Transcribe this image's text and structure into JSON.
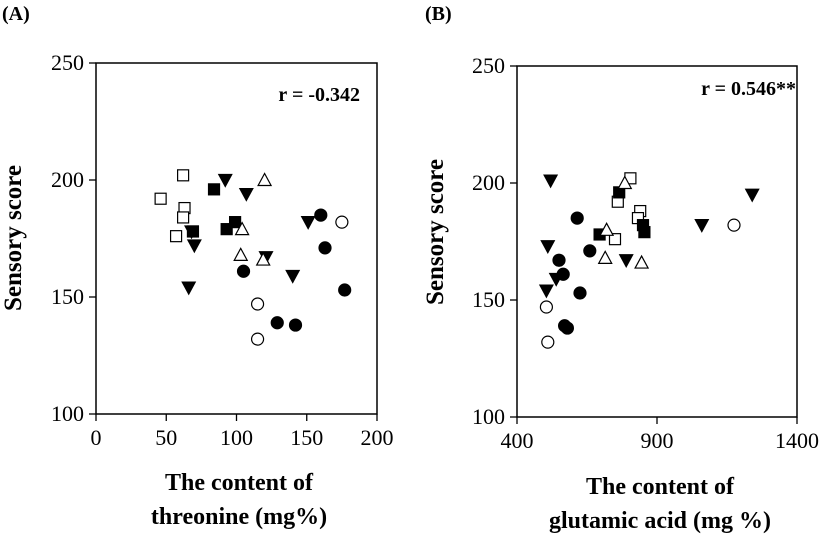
{
  "chart_data": [
    {
      "type": "scatter",
      "panel_label": "(A)",
      "annotation": "r = -0.342",
      "ylabel": "Sensory score",
      "xlabel_lines": [
        "The content of",
        "threonine (mg%)"
      ],
      "xlim": [
        0,
        200
      ],
      "ylim": [
        100,
        250
      ],
      "xticks": [
        0,
        50,
        100,
        150,
        200
      ],
      "yticks": [
        100,
        150,
        200,
        250
      ],
      "grid": false,
      "series": [
        {
          "marker": "open-square",
          "points": [
            [
              46,
              192
            ],
            [
              62,
              202
            ],
            [
              63,
              188
            ],
            [
              62,
              184
            ],
            [
              57,
              176
            ]
          ]
        },
        {
          "marker": "filled-square",
          "points": [
            [
              84,
              196
            ],
            [
              99,
              182
            ],
            [
              93,
              179
            ],
            [
              69,
              178
            ]
          ]
        },
        {
          "marker": "filled-triangle-down",
          "points": [
            [
              66,
              154
            ],
            [
              70,
              172
            ],
            [
              68,
              178
            ],
            [
              92,
              200
            ],
            [
              107,
              194
            ],
            [
              121,
              167
            ],
            [
              140,
              159
            ],
            [
              151,
              182
            ]
          ]
        },
        {
          "marker": "open-triangle",
          "points": [
            [
              120,
              200
            ],
            [
              104,
              179
            ],
            [
              103,
              168
            ],
            [
              119,
              166
            ]
          ]
        },
        {
          "marker": "filled-circle",
          "points": [
            [
              160,
              185
            ],
            [
              163,
              171
            ],
            [
              105,
              161
            ],
            [
              177,
              153
            ],
            [
              129,
              139
            ],
            [
              142,
              138
            ]
          ]
        },
        {
          "marker": "open-circle",
          "points": [
            [
              175,
              182
            ],
            [
              115,
              147
            ],
            [
              115,
              132
            ]
          ]
        }
      ]
    },
    {
      "type": "scatter",
      "panel_label": "(B)",
      "annotation": "r = 0.546**",
      "ylabel": "Sensory score",
      "xlabel_lines": [
        "The content of",
        "glutamic acid (mg %)"
      ],
      "xlim": [
        400,
        1400
      ],
      "ylim": [
        100,
        250
      ],
      "xticks": [
        400,
        900,
        1400
      ],
      "yticks": [
        100,
        150,
        200,
        250
      ],
      "grid": false,
      "series": [
        {
          "marker": "open-square",
          "points": [
            [
              805,
              202
            ],
            [
              840,
              188
            ],
            [
              832,
              185
            ],
            [
              760,
              192
            ],
            [
              750,
              176
            ]
          ]
        },
        {
          "marker": "filled-square",
          "points": [
            [
              765,
              196
            ],
            [
              850,
              182
            ],
            [
              855,
              179
            ],
            [
              695,
              178
            ]
          ]
        },
        {
          "marker": "filled-triangle-down",
          "points": [
            [
              520,
              201
            ],
            [
              510,
              173
            ],
            [
              540,
              159
            ],
            [
              505,
              154
            ],
            [
              790,
              167
            ],
            [
              1240,
              195
            ],
            [
              1060,
              182
            ]
          ]
        },
        {
          "marker": "open-triangle",
          "points": [
            [
              785,
              200
            ],
            [
              720,
              180
            ],
            [
              715,
              168
            ],
            [
              845,
              166
            ]
          ]
        },
        {
          "marker": "filled-circle",
          "points": [
            [
              615,
              185
            ],
            [
              660,
              171
            ],
            [
              550,
              167
            ],
            [
              565,
              161
            ],
            [
              625,
              153
            ],
            [
              570,
              139
            ],
            [
              580,
              138
            ]
          ]
        },
        {
          "marker": "open-circle",
          "points": [
            [
              1175,
              182
            ],
            [
              505,
              147
            ],
            [
              510,
              132
            ]
          ]
        }
      ]
    }
  ]
}
